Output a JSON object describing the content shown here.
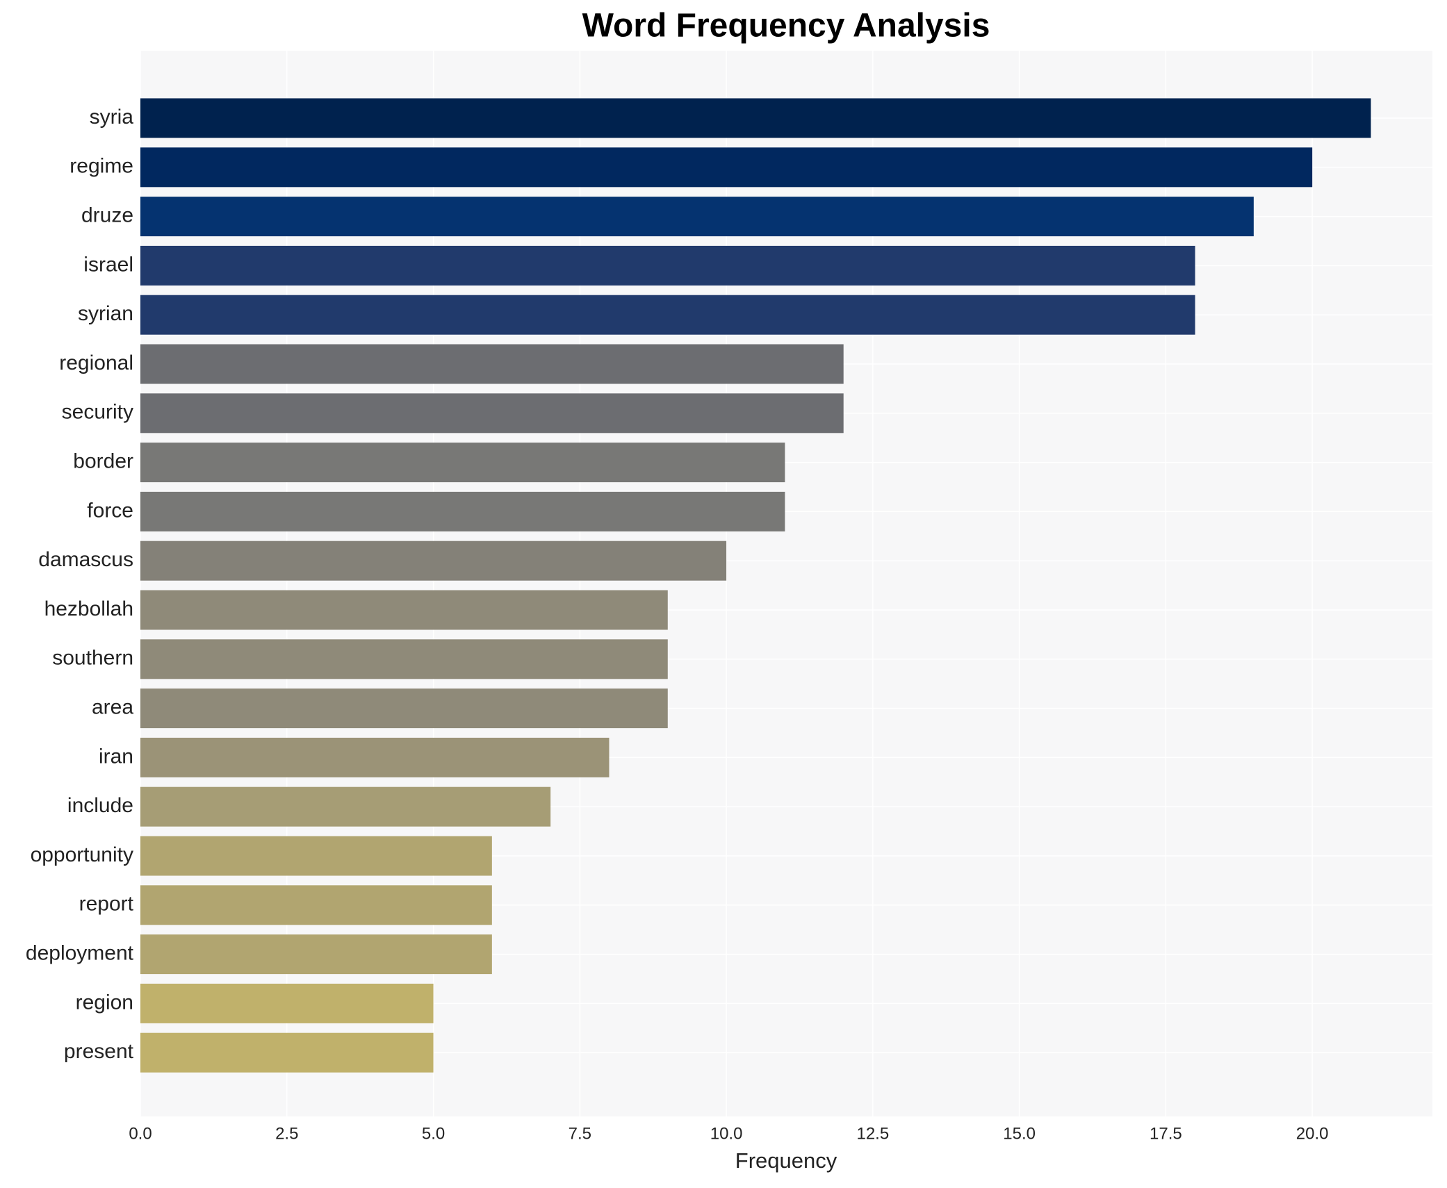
{
  "chart_data": {
    "type": "barh",
    "title": "Word Frequency Analysis",
    "xlabel": "Frequency",
    "categories": [
      "syria",
      "regime",
      "druze",
      "israel",
      "syrian",
      "regional",
      "security",
      "border",
      "force",
      "damascus",
      "hezbollah",
      "southern",
      "area",
      "iran",
      "include",
      "opportunity",
      "report",
      "deployment",
      "region",
      "present"
    ],
    "values": [
      21,
      20,
      19,
      18,
      18,
      12,
      12,
      11,
      11,
      10,
      9,
      9,
      9,
      8,
      7,
      6,
      6,
      6,
      5,
      5
    ],
    "colors": [
      "#00224e",
      "#01285f",
      "#053370",
      "#213a6c",
      "#213a6c",
      "#6c6d71",
      "#6c6d71",
      "#787876",
      "#787876",
      "#848178",
      "#8f8a79",
      "#8f8a79",
      "#8f8a79",
      "#9b9377",
      "#a69d75",
      "#b1a570",
      "#b1a570",
      "#b1a570",
      "#c0b16b",
      "#c0b16b"
    ],
    "xlim": [
      0,
      22.05
    ],
    "xticks": [
      {
        "value": 0,
        "label": "0.0"
      },
      {
        "value": 2.5,
        "label": "2.5"
      },
      {
        "value": 5,
        "label": "5.0"
      },
      {
        "value": 7.5,
        "label": "7.5"
      },
      {
        "value": 10,
        "label": "10.0"
      },
      {
        "value": 12.5,
        "label": "12.5"
      },
      {
        "value": 15,
        "label": "15.0"
      },
      {
        "value": 17.5,
        "label": "17.5"
      },
      {
        "value": 20,
        "label": "20.0"
      }
    ],
    "grid": true
  }
}
